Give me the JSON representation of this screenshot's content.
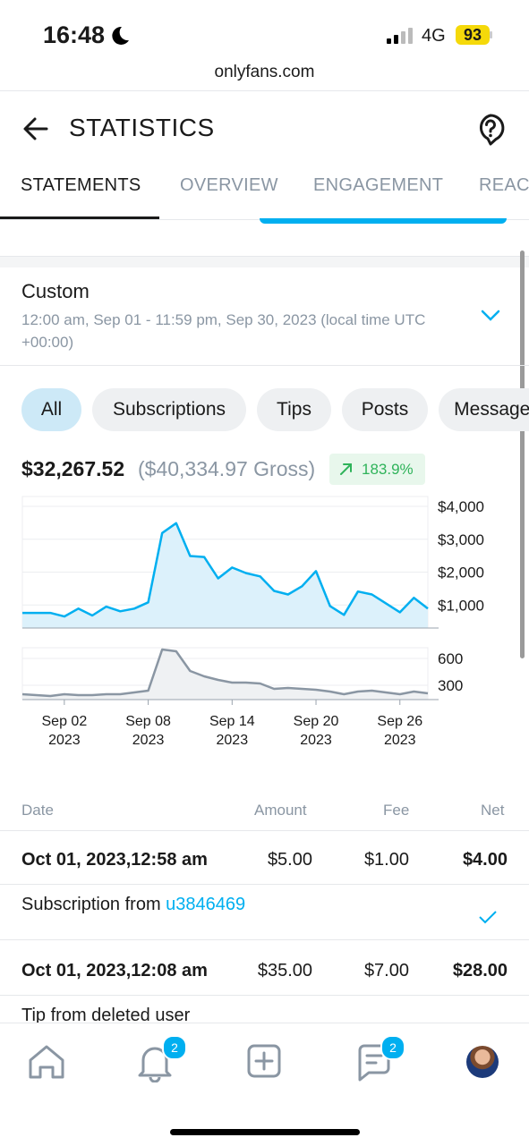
{
  "status_bar": {
    "time": "16:48",
    "network": "4G",
    "battery": "93"
  },
  "url": "onlyfans.com",
  "header": {
    "title": "STATISTICS"
  },
  "tabs": [
    "STATEMENTS",
    "OVERVIEW",
    "ENGAGEMENT",
    "REACH"
  ],
  "period": {
    "name": "Custom",
    "range": "12:00 am, Sep 01 - 11:59 pm, Sep 30, 2023 (local time UTC +00:00)"
  },
  "filters": [
    "All",
    "Subscriptions",
    "Tips",
    "Posts",
    "Messages"
  ],
  "summary": {
    "net": "$32,267.52",
    "gross": "($40,334.97 Gross)",
    "change": "183.9%"
  },
  "earnings_chart": {
    "type": "line",
    "color": "#00aff0",
    "values": [
      760,
      760,
      760,
      650,
      890,
      680,
      950,
      810,
      890,
      1080,
      3190,
      3490,
      2490,
      2460,
      1810,
      2140,
      1970,
      1870,
      1430,
      1320,
      1570,
      2030,
      970,
      700,
      1410,
      1320,
      1050,
      780,
      1220,
      890
    ],
    "ylim": [
      300,
      4300
    ],
    "yticks": [
      {
        "value": 1000,
        "label": "$1,000"
      },
      {
        "value": 2000,
        "label": "$2,000"
      },
      {
        "value": 3000,
        "label": "$3,000"
      },
      {
        "value": 4000,
        "label": "$4,000"
      }
    ]
  },
  "volume_chart": {
    "type": "line",
    "color": "#8a96a3",
    "categories": [
      null,
      null,
      null,
      "Sep 02\n2023",
      null,
      null,
      null,
      null,
      null,
      "Sep 08\n2023",
      null,
      null,
      null,
      null,
      null,
      "Sep 14\n2023",
      null,
      null,
      null,
      null,
      null,
      "Sep 20\n2023",
      null,
      null,
      null,
      null,
      null,
      "Sep 26\n2023",
      null,
      null
    ],
    "values": [
      200,
      190,
      180,
      200,
      190,
      190,
      200,
      200,
      220,
      240,
      700,
      680,
      460,
      400,
      360,
      330,
      330,
      320,
      260,
      270,
      260,
      250,
      230,
      200,
      230,
      240,
      220,
      200,
      230,
      210
    ],
    "ylim": [
      140,
      720
    ],
    "yticks": [
      300,
      600
    ]
  },
  "table": {
    "columns": [
      "Date",
      "Amount",
      "Fee",
      "Net"
    ],
    "rows": [
      {
        "date": "Oct 01, 2023,12:58 am",
        "amount": "$5.00",
        "fee": "$1.00",
        "net": "$4.00",
        "description": "Subscription from ",
        "user": "u3846469"
      },
      {
        "date": "Oct 01, 2023,12:08 am",
        "amount": "$35.00",
        "fee": "$7.00",
        "net": "$28.00",
        "description": "Tip from deleted user"
      }
    ]
  },
  "nav": {
    "notifications_badge": "2",
    "messages_badge": "2"
  }
}
